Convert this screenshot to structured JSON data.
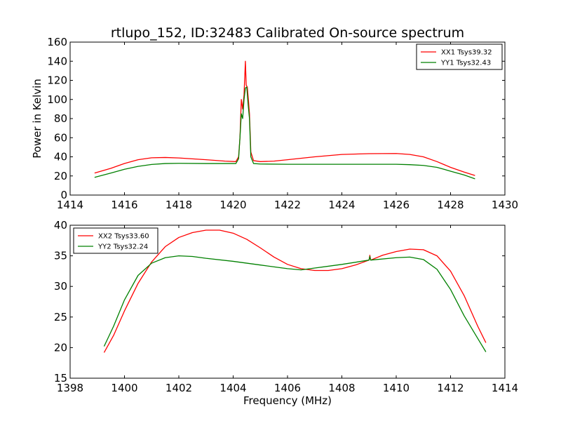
{
  "title": "rtlupo_152, ID:32483 Calibrated On-source spectrum",
  "xlabel": "Frequency (MHz)",
  "chart_data": [
    {
      "type": "line",
      "ylabel": "Power in Kelvin",
      "xlim": [
        1414,
        1430
      ],
      "ylim": [
        0,
        160
      ],
      "xticks": [
        1414,
        1416,
        1418,
        1420,
        1422,
        1424,
        1426,
        1428,
        1430
      ],
      "yticks": [
        0,
        20,
        40,
        60,
        80,
        100,
        120,
        140,
        160
      ],
      "legend_position": "top-right",
      "series": [
        {
          "name": "XX1 Tsys39.32",
          "color": "#ff0000",
          "points": [
            [
              1414.9,
              23
            ],
            [
              1415.5,
              28
            ],
            [
              1416.0,
              33
            ],
            [
              1416.5,
              37
            ],
            [
              1417.0,
              39
            ],
            [
              1417.5,
              39.3
            ],
            [
              1418.0,
              38.8
            ],
            [
              1419.0,
              37
            ],
            [
              1419.7,
              35.5
            ],
            [
              1420.1,
              35
            ],
            [
              1420.2,
              40
            ],
            [
              1420.25,
              60
            ],
            [
              1420.3,
              100
            ],
            [
              1420.35,
              90
            ],
            [
              1420.4,
              105
            ],
            [
              1420.45,
              140
            ],
            [
              1420.48,
              115
            ],
            [
              1420.52,
              113
            ],
            [
              1420.56,
              100
            ],
            [
              1420.6,
              85
            ],
            [
              1420.65,
              45
            ],
            [
              1420.75,
              36
            ],
            [
              1421.0,
              35
            ],
            [
              1421.5,
              35.5
            ],
            [
              1422.0,
              37
            ],
            [
              1423.0,
              40
            ],
            [
              1424.0,
              42.5
            ],
            [
              1425.0,
              43.3
            ],
            [
              1426.0,
              43.5
            ],
            [
              1426.5,
              42.5
            ],
            [
              1427.0,
              40
            ],
            [
              1427.5,
              35
            ],
            [
              1428.0,
              29
            ],
            [
              1428.5,
              24
            ],
            [
              1428.9,
              20.5
            ]
          ]
        },
        {
          "name": "YY1 Tsys32.43",
          "color": "#008000",
          "points": [
            [
              1414.9,
              18.5
            ],
            [
              1415.5,
              23
            ],
            [
              1416.0,
              27
            ],
            [
              1416.5,
              30
            ],
            [
              1417.0,
              32
            ],
            [
              1417.5,
              33
            ],
            [
              1418.0,
              33.2
            ],
            [
              1419.0,
              33
            ],
            [
              1419.7,
              33
            ],
            [
              1420.1,
              33
            ],
            [
              1420.2,
              38
            ],
            [
              1420.25,
              60
            ],
            [
              1420.3,
              85
            ],
            [
              1420.35,
              80
            ],
            [
              1420.4,
              100
            ],
            [
              1420.45,
              112
            ],
            [
              1420.5,
              113
            ],
            [
              1420.55,
              95
            ],
            [
              1420.6,
              80
            ],
            [
              1420.65,
              40
            ],
            [
              1420.75,
              33
            ],
            [
              1421.0,
              32.5
            ],
            [
              1422.0,
              32.2
            ],
            [
              1423.0,
              32.2
            ],
            [
              1424.0,
              32.2
            ],
            [
              1425.0,
              32.2
            ],
            [
              1426.0,
              32.2
            ],
            [
              1426.5,
              31.8
            ],
            [
              1427.0,
              31
            ],
            [
              1427.5,
              29
            ],
            [
              1428.0,
              25
            ],
            [
              1428.5,
              21
            ],
            [
              1428.9,
              17
            ]
          ]
        }
      ]
    },
    {
      "type": "line",
      "xlim": [
        1398,
        1414
      ],
      "ylim": [
        15,
        40
      ],
      "xticks": [
        1398,
        1400,
        1402,
        1404,
        1406,
        1408,
        1410,
        1412,
        1414
      ],
      "yticks": [
        15,
        20,
        25,
        30,
        35,
        40
      ],
      "legend_position": "top-left",
      "series": [
        {
          "name": "XX2 Tsys33.60",
          "color": "#ff0000",
          "points": [
            [
              1399.25,
              19.2
            ],
            [
              1399.6,
              22
            ],
            [
              1400.0,
              26
            ],
            [
              1400.5,
              30.5
            ],
            [
              1401.0,
              34
            ],
            [
              1401.5,
              36.5
            ],
            [
              1402.0,
              38
            ],
            [
              1402.5,
              38.8
            ],
            [
              1403.0,
              39.2
            ],
            [
              1403.5,
              39.2
            ],
            [
              1404.0,
              38.7
            ],
            [
              1404.5,
              37.7
            ],
            [
              1405.0,
              36.3
            ],
            [
              1405.5,
              34.8
            ],
            [
              1406.0,
              33.6
            ],
            [
              1406.5,
              32.9
            ],
            [
              1407.0,
              32.6
            ],
            [
              1407.5,
              32.6
            ],
            [
              1408.0,
              32.9
            ],
            [
              1408.5,
              33.5
            ],
            [
              1409.0,
              34.3
            ],
            [
              1409.03,
              35.1
            ],
            [
              1409.06,
              34.3
            ],
            [
              1409.5,
              35.1
            ],
            [
              1410.0,
              35.7
            ],
            [
              1410.5,
              36.1
            ],
            [
              1411.0,
              36.0
            ],
            [
              1411.5,
              35
            ],
            [
              1412.0,
              32.5
            ],
            [
              1412.5,
              28.5
            ],
            [
              1413.0,
              23.5
            ],
            [
              1413.3,
              20.8
            ]
          ]
        },
        {
          "name": "YY2 Tsys32.24",
          "color": "#008000",
          "points": [
            [
              1399.25,
              20.2
            ],
            [
              1399.6,
              23.5
            ],
            [
              1400.0,
              27.8
            ],
            [
              1400.5,
              31.8
            ],
            [
              1401.0,
              33.8
            ],
            [
              1401.5,
              34.7
            ],
            [
              1402.0,
              35.0
            ],
            [
              1402.5,
              34.9
            ],
            [
              1403.0,
              34.6
            ],
            [
              1404.0,
              34.1
            ],
            [
              1405.0,
              33.5
            ],
            [
              1406.0,
              32.9
            ],
            [
              1406.5,
              32.7
            ],
            [
              1407.0,
              33.0
            ],
            [
              1408.0,
              33.6
            ],
            [
              1409.0,
              34.3
            ],
            [
              1409.03,
              34.9
            ],
            [
              1409.06,
              34.3
            ],
            [
              1410.0,
              34.7
            ],
            [
              1410.5,
              34.8
            ],
            [
              1411.0,
              34.4
            ],
            [
              1411.5,
              32.8
            ],
            [
              1412.0,
              29.5
            ],
            [
              1412.5,
              25.2
            ],
            [
              1413.0,
              21.5
            ],
            [
              1413.3,
              19.3
            ]
          ]
        }
      ]
    }
  ]
}
